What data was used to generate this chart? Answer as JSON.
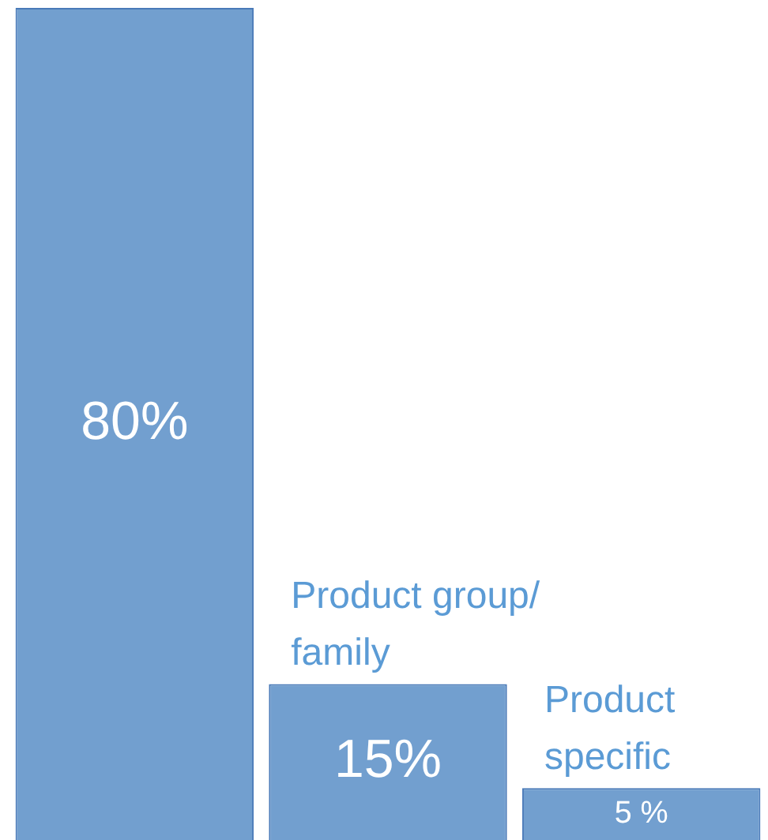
{
  "chart_data": {
    "type": "bar",
    "categories": [
      null,
      "Product group/ family",
      "Product specific"
    ],
    "values": [
      80,
      15,
      5
    ],
    "value_labels": [
      "80%",
      "15%",
      "5 %"
    ],
    "color": "#729fcf"
  }
}
